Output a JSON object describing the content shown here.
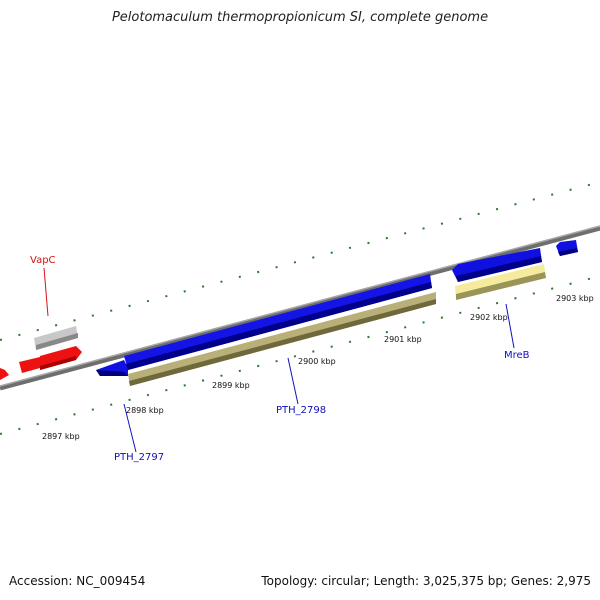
{
  "title": "Pelotomaculum thermopropionicum SI, complete genome",
  "footer": {
    "accession": "Accession: NC_009454",
    "topology": "Topology: circular; Length: 3,025,375 bp; Genes: 2,975"
  },
  "ticks": {
    "labels": [
      "2897 kbp",
      "2898 kbp",
      "2899 kbp",
      "2900 kbp",
      "2901 kbp",
      "2902 kbp",
      "2903 kbp"
    ]
  },
  "genes": {
    "vapc": "VapC",
    "pth2797": "PTH_2797",
    "pth2798": "PTH_2798",
    "mreb": "MreB"
  },
  "colors": {
    "backbone": "#8a8a8a",
    "cds_forward": "#1010e0",
    "cds_toxin": "#ee1111",
    "rna_gray": "#c8c8c8",
    "feature_olive": "#b8b078",
    "feature_pale": "#f2eaa0",
    "tick_green": "#2a7a2a",
    "label_blue": "#1010c0",
    "label_red": "#dd1111"
  }
}
